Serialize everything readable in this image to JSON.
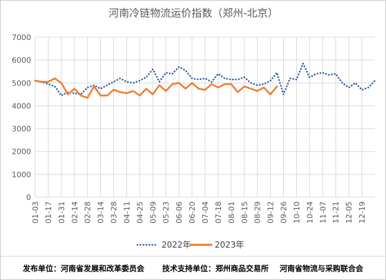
{
  "chart_data": {
    "type": "line",
    "title": "河南冷链物流运价指数（郑州-北京）",
    "ylim": [
      0,
      7000
    ],
    "yticks": [
      0,
      1000,
      2000,
      3000,
      4000,
      5000,
      6000,
      7000
    ],
    "grid": true,
    "legend_position": "bottom",
    "x_tick_labels": [
      "01-03",
      "01-17",
      "01-31",
      "02-14",
      "02-28",
      "03-14",
      "03-28",
      "04-11",
      "04-25",
      "05-09",
      "05-23",
      "06-06",
      "06-20",
      "07-04",
      "07-18",
      "08-01",
      "08-15",
      "08-29",
      "09-12",
      "09-26",
      "10-10",
      "10-24",
      "11-07",
      "11-21",
      "12-05",
      "12-19"
    ],
    "series": [
      {
        "name": "2022年",
        "color": "#2E5F9E",
        "style": "dotted",
        "values": [
          5100,
          5050,
          4950,
          4850,
          4450,
          4600,
          4550,
          4500,
          4800,
          4900,
          4750,
          4900,
          5050,
          5200,
          5050,
          5000,
          5100,
          5250,
          5600,
          5050,
          5450,
          5400,
          5700,
          5550,
          5200,
          5150,
          5200,
          5050,
          5400,
          5200,
          5150,
          5150,
          5250,
          5000,
          4900,
          4950,
          5100,
          5450,
          4500,
          5200,
          5150,
          5850,
          5250,
          5400,
          5450,
          5350,
          5400,
          5000,
          4800,
          5000,
          4700,
          4800,
          5100
        ]
      },
      {
        "name": "2023年",
        "color": "#ED7D31",
        "style": "solid",
        "values": [
          5100,
          5050,
          5050,
          5200,
          5000,
          4500,
          4750,
          4450,
          4350,
          4850,
          4450,
          4450,
          4700,
          4600,
          4550,
          4650,
          4450,
          4750,
          4500,
          4900,
          4650,
          4950,
          5000,
          4750,
          5000,
          4750,
          4700,
          4950,
          4800,
          4950,
          4950,
          4600,
          4850,
          4750,
          4650,
          4800,
          4500,
          4850
        ]
      }
    ]
  },
  "footer": {
    "publisher": "发布单位：河南省发展和改革委员会",
    "support": "技术支持单位：郑州商品交易所",
    "association": "河南省物流与采购联合会"
  }
}
